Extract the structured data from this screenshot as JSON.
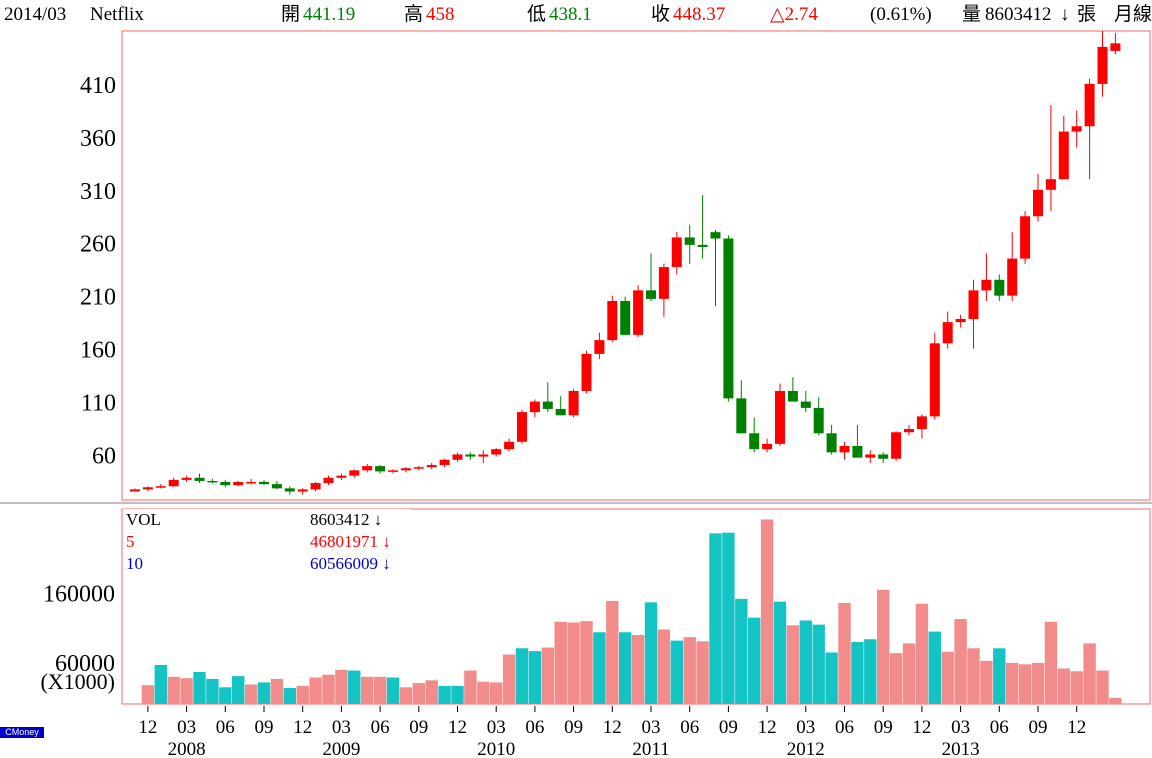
{
  "header": {
    "period": "2014/03",
    "symbol": "Netflix",
    "open_label": "開",
    "open_value": "441.19",
    "high_label": "高",
    "high_value": "458",
    "low_label": "低",
    "low_value": "438.1",
    "close_label": "收",
    "close_value": "448.37",
    "change_value": "△2.74",
    "change_pct": "(0.61%)",
    "volume_label": "量",
    "volume_value": "8603412",
    "volume_arrow": "↓",
    "volume_unit": "張",
    "interval_label": "月線"
  },
  "volume_legend": [
    {
      "name": "VOL",
      "value": "8603412",
      "arrow": "↓",
      "color": "#000000"
    },
    {
      "name": "5",
      "value": "46801971",
      "arrow": "↓",
      "color": "#ff0000"
    },
    {
      "name": "10",
      "value": "60566009",
      "arrow": "↓",
      "color": "#0000cc"
    }
  ],
  "volume_unit_label": "(X1000)",
  "watermark": "CMoney",
  "colors": {
    "up_candle": "#ff0000",
    "down_candle": "#008000",
    "up_volume": "#f28b8b",
    "down_volume": "#14c4c4",
    "frame": "#ff6666"
  },
  "chart_data": [
    {
      "type": "candlestick",
      "title": "Netflix",
      "ylim": [
        17,
        460
      ],
      "y_ticks": [
        60,
        110,
        160,
        210,
        260,
        310,
        360,
        410
      ],
      "grid": false,
      "x_tick_labels": [
        "12",
        "03",
        "06",
        "09",
        "12",
        "03",
        "06",
        "09",
        "12",
        "03",
        "06",
        "09",
        "12",
        "03",
        "06",
        "09",
        "12",
        "03",
        "06",
        "09",
        "12",
        "03",
        "06",
        "09",
        "12"
      ],
      "year_labels": [
        "2008",
        "2009",
        "2010",
        "2011",
        "2012",
        "2013"
      ],
      "candles": [
        [
          25,
          28,
          25,
          27
        ],
        [
          27,
          30,
          25,
          29
        ],
        [
          29,
          32,
          28,
          30
        ],
        [
          30,
          38,
          29,
          36
        ],
        [
          36,
          40,
          34,
          38
        ],
        [
          38,
          42,
          33,
          35
        ],
        [
          35,
          37,
          33,
          34
        ],
        [
          34,
          36,
          29,
          31
        ],
        [
          31,
          35,
          30,
          34
        ],
        [
          34,
          37,
          32,
          34
        ],
        [
          34,
          36,
          31,
          32
        ],
        [
          32,
          35,
          27,
          28
        ],
        [
          28,
          30,
          22,
          25
        ],
        [
          25,
          28,
          22,
          27
        ],
        [
          27,
          34,
          25,
          33
        ],
        [
          33,
          40,
          31,
          38
        ],
        [
          38,
          42,
          36,
          40
        ],
        [
          40,
          46,
          38,
          45
        ],
        [
          45,
          51,
          43,
          49
        ],
        [
          49,
          50,
          42,
          44
        ],
        [
          44,
          46,
          42,
          45
        ],
        [
          45,
          48,
          43,
          47
        ],
        [
          47,
          49,
          45,
          48
        ],
        [
          48,
          52,
          46,
          50
        ],
        [
          50,
          56,
          48,
          55
        ],
        [
          55,
          62,
          53,
          60
        ],
        [
          60,
          62,
          55,
          58
        ],
        [
          58,
          64,
          52,
          60
        ],
        [
          60,
          66,
          58,
          65
        ],
        [
          65,
          75,
          63,
          72
        ],
        [
          72,
          102,
          70,
          100
        ],
        [
          100,
          112,
          95,
          110
        ],
        [
          110,
          128,
          100,
          103
        ],
        [
          103,
          115,
          97,
          97
        ],
        [
          97,
          122,
          95,
          120
        ],
        [
          120,
          158,
          118,
          155
        ],
        [
          155,
          175,
          150,
          168
        ],
        [
          168,
          210,
          166,
          205
        ],
        [
          205,
          209,
          173,
          173
        ],
        [
          173,
          220,
          171,
          215
        ],
        [
          215,
          250,
          205,
          207
        ],
        [
          207,
          240,
          190,
          237
        ],
        [
          237,
          270,
          230,
          265
        ],
        [
          265,
          277,
          240,
          258
        ],
        [
          258,
          305,
          245,
          256
        ],
        [
          270,
          272,
          200,
          264
        ],
        [
          264,
          267,
          110,
          113
        ],
        [
          113,
          130,
          80,
          80
        ],
        [
          80,
          95,
          62,
          65
        ],
        [
          65,
          75,
          62,
          70
        ],
        [
          70,
          127,
          68,
          120
        ],
        [
          120,
          133,
          110,
          110
        ],
        [
          110,
          120,
          100,
          104
        ],
        [
          104,
          114,
          78,
          80
        ],
        [
          80,
          88,
          60,
          62
        ],
        [
          62,
          72,
          55,
          68
        ],
        [
          68,
          88,
          58,
          57
        ],
        [
          57,
          64,
          52,
          60
        ],
        [
          60,
          62,
          52,
          56
        ],
        [
          56,
          82,
          54,
          81
        ],
        [
          81,
          88,
          78,
          84
        ],
        [
          84,
          98,
          75,
          96
        ],
        [
          96,
          175,
          93,
          165
        ],
        [
          165,
          195,
          160,
          185
        ],
        [
          185,
          192,
          180,
          188
        ],
        [
          188,
          225,
          160,
          215
        ],
        [
          215,
          250,
          205,
          225
        ],
        [
          225,
          230,
          205,
          210
        ],
        [
          210,
          270,
          205,
          245
        ],
        [
          245,
          290,
          240,
          285
        ],
        [
          285,
          325,
          280,
          310
        ],
        [
          310,
          390,
          290,
          320
        ],
        [
          320,
          380,
          320,
          365
        ],
        [
          365,
          385,
          350,
          370
        ],
        [
          370,
          415,
          320,
          410
        ],
        [
          410,
          460,
          398,
          445
        ],
        [
          441.19,
          458,
          438.1,
          448.37
        ]
      ]
    },
    {
      "type": "bar",
      "title": "VOL",
      "ylim": [
        0,
        280000
      ],
      "y_ticks": [
        60000,
        160000
      ],
      "values": [
        0,
        27000,
        56000,
        39000,
        37000,
        46000,
        36000,
        24000,
        40000,
        28000,
        31000,
        36000,
        23000,
        26000,
        38000,
        42000,
        49000,
        48000,
        39000,
        39000,
        38000,
        24000,
        30000,
        34000,
        26000,
        26000,
        48000,
        32000,
        31000,
        71000,
        80000,
        76000,
        81000,
        118000,
        117000,
        119000,
        103000,
        148000,
        103000,
        99000,
        146000,
        107000,
        91000,
        96000,
        90000,
        245000,
        246000,
        151000,
        124000,
        265000,
        147000,
        113000,
        120000,
        114000,
        74000,
        145000,
        89000,
        93000,
        164000,
        73000,
        87000,
        144000,
        104000,
        75000,
        122000,
        80000,
        62000,
        80000,
        59000,
        57000,
        59000,
        118000,
        51000,
        47000,
        87000,
        48000,
        8603
      ],
      "up": [
        false,
        true,
        false,
        true,
        true,
        false,
        false,
        false,
        false,
        true,
        false,
        true,
        false,
        true,
        true,
        true,
        true,
        false,
        true,
        true,
        false,
        true,
        true,
        true,
        false,
        false,
        true,
        true,
        true,
        true,
        false,
        false,
        true,
        true,
        true,
        true,
        false,
        true,
        false,
        true,
        false,
        true,
        false,
        true,
        true,
        false,
        false,
        false,
        false,
        true,
        false,
        true,
        false,
        false,
        false,
        true,
        false,
        false,
        true,
        true,
        true,
        true,
        false,
        true,
        true,
        true,
        true,
        false,
        true,
        true,
        true,
        true,
        true,
        true,
        true,
        true,
        true
      ]
    }
  ]
}
